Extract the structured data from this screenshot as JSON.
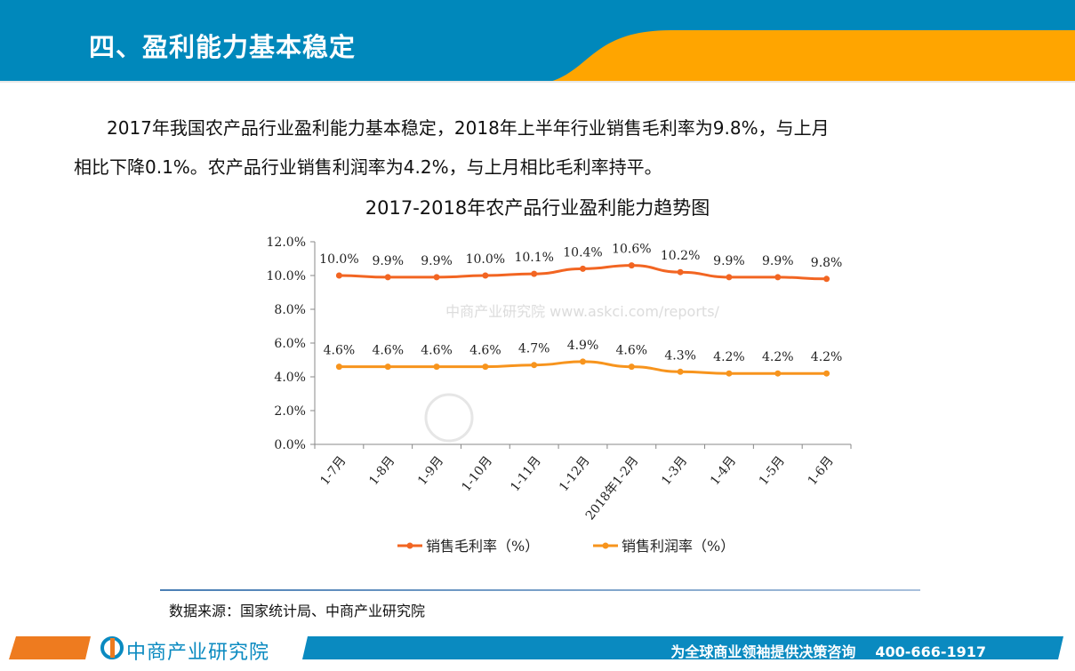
{
  "header": {
    "title": "四、盈利能力基本稳定",
    "colors": {
      "blue": "#0088bb",
      "orange": "#ffa500"
    }
  },
  "body": {
    "line1": "2017年我国农产品行业盈利能力基本稳定，2018年上半年行业销售毛利率为9.8%，与上月",
    "line2": "相比下降0.1%。农产品行业销售利润率为4.2%，与上月相比毛利率持平。"
  },
  "chart_data": {
    "type": "line",
    "title": "2017-2018年农产品行业盈利能力趋势图",
    "categories": [
      "1-7月",
      "1-8月",
      "1-9月",
      "1-10月",
      "1-11月",
      "1-12月",
      "2018年1-2月",
      "1-3月",
      "1-4月",
      "1-5月",
      "1-6月"
    ],
    "y_ticks": [
      "0.0%",
      "2.0%",
      "4.0%",
      "6.0%",
      "8.0%",
      "10.0%",
      "12.0%"
    ],
    "ylim": [
      0,
      12
    ],
    "grid": false,
    "legend": "bottom",
    "series": [
      {
        "name": "销售毛利率（%）",
        "color": "#f26522",
        "values": [
          10.0,
          9.9,
          9.9,
          10.0,
          10.1,
          10.4,
          10.6,
          10.2,
          9.9,
          9.9,
          9.8
        ],
        "labels": [
          "10.0%",
          "9.9%",
          "9.9%",
          "10.0%",
          "10.1%",
          "10.4%",
          "10.6%",
          "10.2%",
          "9.9%",
          "9.9%",
          "9.8%"
        ]
      },
      {
        "name": "销售利润率（%）",
        "color": "#f7941d",
        "values": [
          4.6,
          4.6,
          4.6,
          4.6,
          4.7,
          4.9,
          4.6,
          4.3,
          4.2,
          4.2,
          4.2
        ],
        "labels": [
          "4.6%",
          "4.6%",
          "4.6%",
          "4.6%",
          "4.7%",
          "4.9%",
          "4.6%",
          "4.3%",
          "4.2%",
          "4.2%",
          "4.2%"
        ]
      }
    ],
    "watermark": "中商产业研究院 www.askci.com/reports/"
  },
  "source": "数据来源：国家统计局、中商产业研究院",
  "footer": {
    "logo": "中商产业研究院",
    "slogan": "为全球商业领袖提供决策咨询",
    "phone": "400-666-1917"
  }
}
